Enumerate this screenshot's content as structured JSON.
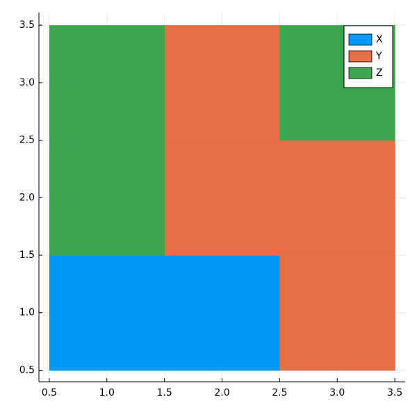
{
  "chart_data": {
    "type": "heatmap",
    "series": [
      {
        "name": "X",
        "color": "#009af9",
        "x": [
          1,
          2
        ],
        "y": [
          1,
          1
        ]
      },
      {
        "name": "Y",
        "color": "#e26f46",
        "x": [
          3,
          2,
          3,
          2
        ],
        "y": [
          1,
          2,
          2,
          3
        ]
      },
      {
        "name": "Z",
        "color": "#3ea44e",
        "x": [
          1,
          1,
          3
        ],
        "y": [
          2,
          3,
          3
        ]
      }
    ],
    "xlim": [
      0.41,
      3.59
    ],
    "ylim": [
      0.4,
      3.61
    ],
    "xticks": [
      0.5,
      {
        "value": 1,
        "label": "1.0"
      },
      1.5,
      {
        "value": 2,
        "label": "2.0"
      },
      2.5,
      {
        "value": 3,
        "label": "3.0"
      },
      3.5
    ],
    "yticks": [
      0.5,
      {
        "value": 1,
        "label": "1.0"
      },
      1.5,
      {
        "value": 2,
        "label": "2.0"
      },
      2.5,
      {
        "value": 3,
        "label": "3.0"
      },
      3.5
    ],
    "grid": true,
    "legend": "top-right"
  }
}
